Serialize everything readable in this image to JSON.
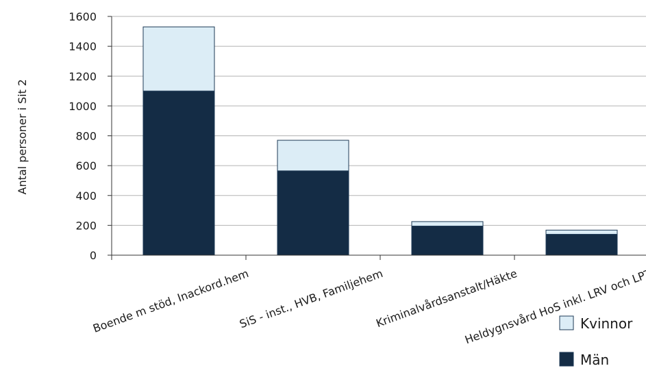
{
  "chart_data": {
    "type": "bar",
    "stacked": true,
    "ylabel": "Antal personer i Sit 2",
    "ylim": [
      0,
      1600
    ],
    "yticks": [
      0,
      200,
      400,
      600,
      800,
      1000,
      1200,
      1400,
      1600
    ],
    "grid": true,
    "legend_position": "bottom-right",
    "categories": [
      "Boende m stöd, Inackord.hem",
      "SiS - inst., HVB, Familjehem",
      "Kriminalvårdsanstalt/Häkte",
      "Heldygnsvård HoS inkl. LRV och LPT"
    ],
    "series": [
      {
        "name": "Män",
        "color": "#142c45",
        "values": [
          1100,
          565,
          195,
          140
        ]
      },
      {
        "name": "Kvinnor",
        "color": "#dcedf6",
        "values": [
          430,
          205,
          30,
          28
        ]
      }
    ],
    "legend": [
      {
        "name": "Kvinnor",
        "color": "#dcedf6"
      },
      {
        "name": "Män",
        "color": "#142c45"
      }
    ]
  }
}
